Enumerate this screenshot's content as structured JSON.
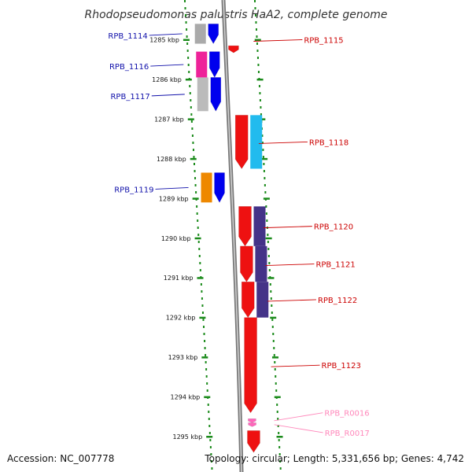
{
  "title": "Rhodopseudomonas palustris HaA2, complete genome",
  "footer": {
    "accession": "Accession: NC_007778",
    "topology": "Topology: circular; Length: 5,331,656 bp; Genes: 4,742"
  },
  "colors": {
    "ruler": "#1a8a1a",
    "label_blue": "#1010aa",
    "label_red": "#cc0000",
    "label_pink": "#ff88bb",
    "backbone": "#888888"
  },
  "ticks": [
    {
      "kbp": 1285,
      "label": "1285 kbp"
    },
    {
      "kbp": 1286,
      "label": "1286 kbp"
    },
    {
      "kbp": 1287,
      "label": "1287 kbp"
    },
    {
      "kbp": 1288,
      "label": "1288 kbp"
    },
    {
      "kbp": 1289,
      "label": "1289 kbp"
    },
    {
      "kbp": 1290,
      "label": "1290 kbp"
    },
    {
      "kbp": 1291,
      "label": "1291 kbp"
    },
    {
      "kbp": 1292,
      "label": "1292 kbp"
    },
    {
      "kbp": 1293,
      "label": "1293 kbp"
    },
    {
      "kbp": 1294,
      "label": "1294 kbp"
    },
    {
      "kbp": 1295,
      "label": "1295 kbp"
    }
  ],
  "genes": [
    {
      "label": "RPB_1114",
      "side": "left",
      "color": "#0000ee",
      "shade": "#aaaaaa",
      "start_kbp": 1284.6,
      "end_kbp": 1285.1
    },
    {
      "label": "RPB_1115",
      "side": "right",
      "color": "#ee1111",
      "start_kbp": 1285.15,
      "end_kbp": 1285.25
    },
    {
      "label": "RPB_1116",
      "side": "left",
      "color": "#0000ee",
      "shade": "#ee2299",
      "start_kbp": 1285.3,
      "end_kbp": 1285.95
    },
    {
      "label": "RPB_1117",
      "side": "left",
      "color": "#0000ee",
      "shade": "#bbbbbb",
      "start_kbp": 1285.95,
      "end_kbp": 1286.8
    },
    {
      "label": "RPB_1118",
      "side": "right",
      "color": "#ee1111",
      "shade": "#22bbee",
      "start_kbp": 1286.9,
      "end_kbp": 1288.25
    },
    {
      "label": "RPB_1119",
      "side": "left",
      "color": "#0000ee",
      "shade": "#ee8800",
      "start_kbp": 1288.35,
      "end_kbp": 1289.1
    },
    {
      "label": "RPB_1120",
      "side": "right",
      "color": "#ee1111",
      "shade": "#443388",
      "start_kbp": 1289.2,
      "end_kbp": 1290.2
    },
    {
      "label": "RPB_1121",
      "side": "right",
      "color": "#ee1111",
      "shade": "#443388",
      "start_kbp": 1290.2,
      "end_kbp": 1291.1
    },
    {
      "label": "RPB_1122",
      "side": "right",
      "color": "#ee1111",
      "shade": "#443388",
      "start_kbp": 1291.1,
      "end_kbp": 1292.0
    },
    {
      "label": "RPB_1123",
      "side": "right",
      "color": "#ee1111",
      "start_kbp": 1292.0,
      "end_kbp": 1294.4
    },
    {
      "label": "RPB_R0016",
      "side": "right",
      "color": "#ff66bb",
      "start_kbp": 1294.55,
      "end_kbp": 1294.65
    },
    {
      "label": "RPB_R0017",
      "side": "right",
      "color": "#ff66bb",
      "start_kbp": 1294.65,
      "end_kbp": 1294.75
    },
    {
      "label": "",
      "side": "right",
      "color": "#ee1111",
      "start_kbp": 1294.85,
      "end_kbp": 1295.4
    }
  ]
}
